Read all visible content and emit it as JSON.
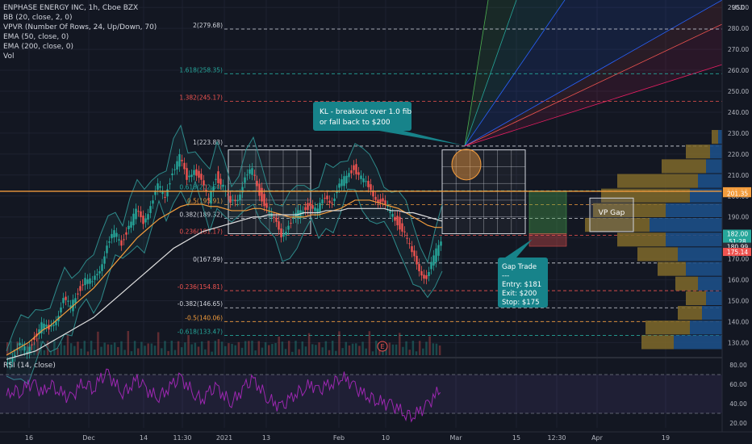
{
  "legend": {
    "title": "ENPHASE ENERGY INC, 1h, Cboe BZX",
    "lines": [
      "BB (20, close, 2, 0)",
      "VPVR (Number Of Rows, 24, Up/Down, 70)",
      "EMA (50, close, 0)",
      "EMA (200, close, 0)",
      "Vol"
    ],
    "rsi": "RSI (14, close)"
  },
  "colors": {
    "background": "#131722",
    "grid": "#1e2230",
    "candle_up": "#26a69a",
    "candle_down": "#ef5350",
    "bb": "#2e8b8b",
    "ema50": "#f39c3c",
    "ema200": "#e0e0e0",
    "rsi": "#9c27b0",
    "fib_teal": "#26a69a",
    "fib_orange": "#f39c3c",
    "fib_red": "#ef5350",
    "fib_white": "#d1d4dc",
    "callout": "#17838a",
    "vp_up": "#806a2a",
    "vp_down": "#1d4f87"
  },
  "chart_data": {
    "type": "candlestick",
    "price_axis": {
      "ticks": [
        130,
        140,
        150,
        160,
        170,
        180,
        190,
        200,
        210,
        220,
        230,
        240,
        250,
        260,
        270,
        280,
        290
      ],
      "currency": "USD",
      "range": [
        124,
        292
      ]
    },
    "time_axis": {
      "labels": [
        "16",
        "Dec",
        "14",
        "11:30",
        "2021",
        "13",
        "Feb",
        "10",
        "Mar",
        "15",
        "12:30",
        "Apr",
        "19"
      ]
    },
    "price_badges": [
      {
        "label": "202.25",
        "value": 202.25,
        "color": "#f39c3c"
      },
      {
        "label": "201.35",
        "value": 201.35,
        "color": "#f39c3c"
      },
      {
        "label": "182.00",
        "value": 182.0,
        "color": "#26a69a"
      },
      {
        "label": "51:28",
        "value": 178.3,
        "color": "#26a69a"
      },
      {
        "label": "180.99",
        "value": 175.8,
        "color": "#2a2e39"
      },
      {
        "label": "175.14",
        "value": 173.3,
        "color": "#ef5350"
      }
    ],
    "fib_levels": [
      {
        "ratio": "-0.618",
        "label": "-0.618(133.47)",
        "price": 133.47,
        "color": "#26a69a"
      },
      {
        "ratio": "-0.5",
        "label": "-0.5(140.06)",
        "price": 140.06,
        "color": "#f39c3c"
      },
      {
        "ratio": "-0.382",
        "label": "-0.382(146.65)",
        "price": 146.65,
        "color": "#d1d4dc"
      },
      {
        "ratio": "-0.236",
        "label": "-0.236(154.81)",
        "price": 154.81,
        "color": "#ef5350"
      },
      {
        "ratio": "0",
        "label": "0(167.99)",
        "price": 167.99,
        "color": "#d1d4dc"
      },
      {
        "ratio": "0.236",
        "label": "0.236(181.17)",
        "price": 181.17,
        "color": "#ef5350"
      },
      {
        "ratio": "0.382",
        "label": "0.382(189.32)",
        "price": 189.32,
        "color": "#d1d4dc"
      },
      {
        "ratio": "0.5",
        "label": "0.5(195.91)",
        "price": 195.91,
        "color": "#f39c3c"
      },
      {
        "ratio": "0.618",
        "label": "0.618(202.50)",
        "price": 202.5,
        "color": "#26a69a"
      },
      {
        "ratio": "1",
        "label": "1(223.83)",
        "price": 223.83,
        "color": "#d1d4dc"
      },
      {
        "ratio": "1.382",
        "label": "1.382(245.17)",
        "price": 245.17,
        "color": "#ef5350"
      },
      {
        "ratio": "1.618",
        "label": "1.618(258.35)",
        "price": 258.35,
        "color": "#26a69a"
      },
      {
        "ratio": "2",
        "label": "2(279.68)",
        "price": 279.68,
        "color": "#d1d4dc"
      }
    ],
    "horizontal_line": {
      "price": 202.25,
      "color": "#f39c3c"
    },
    "close_series": [
      120,
      124,
      128,
      126,
      133,
      138,
      136,
      142,
      150,
      147,
      155,
      160,
      158,
      166,
      176,
      182,
      178,
      186,
      192,
      188,
      196,
      204,
      200,
      212,
      218,
      208,
      214,
      206,
      198,
      210,
      204,
      196,
      200,
      208,
      212,
      202,
      194,
      188,
      182,
      186,
      190,
      194,
      196,
      192,
      200,
      198,
      204,
      210,
      214,
      208,
      204,
      200,
      196,
      192,
      188,
      182,
      172,
      166,
      160,
      170,
      180
    ],
    "ema50_series": [
      124,
      126,
      128,
      130,
      133,
      136,
      138,
      141,
      144,
      147,
      150,
      153,
      156,
      160,
      164,
      168,
      172,
      176,
      180,
      183,
      186,
      189,
      191,
      193,
      195,
      196,
      196,
      196,
      195,
      195,
      194,
      193,
      193,
      193,
      194,
      194,
      193,
      192,
      191,
      190,
      190,
      190,
      191,
      191,
      192,
      193,
      194,
      196,
      198,
      198,
      198,
      197,
      196,
      195,
      194,
      192,
      190,
      188,
      186,
      185,
      185
    ],
    "ema200_series": [
      122,
      123,
      124,
      125,
      126,
      128,
      130,
      132,
      134,
      136,
      138,
      140,
      142,
      145,
      148,
      151,
      154,
      157,
      160,
      163,
      166,
      169,
      172,
      175,
      177,
      179,
      181,
      183,
      184,
      185,
      186,
      187,
      188,
      189,
      190,
      190,
      191,
      191,
      191,
      191,
      191,
      192,
      192,
      192,
      193,
      193,
      193,
      194,
      194,
      194,
      194,
      194,
      194,
      193,
      193,
      192,
      192,
      191,
      190,
      189,
      188
    ],
    "rsi": {
      "ticks": [
        20,
        40,
        60,
        80
      ],
      "overbought": 70,
      "oversold": 30,
      "series": [
        48,
        55,
        52,
        60,
        58,
        50,
        62,
        55,
        48,
        45,
        58,
        62,
        55,
        66,
        70,
        60,
        52,
        58,
        64,
        56,
        50,
        48,
        54,
        60,
        66,
        58,
        50,
        44,
        52,
        56,
        48,
        42,
        50,
        58,
        64,
        56,
        46,
        40,
        36,
        44,
        52,
        56,
        60,
        52,
        58,
        62,
        68,
        64,
        56,
        50,
        48,
        44,
        40,
        38,
        34,
        30,
        28,
        32,
        38,
        48,
        58
      ]
    },
    "volume_profile": [
      {
        "price": 130,
        "up": 40,
        "down": 60
      },
      {
        "price": 137,
        "up": 55,
        "down": 40
      },
      {
        "price": 144,
        "up": 30,
        "down": 25
      },
      {
        "price": 151,
        "up": 25,
        "down": 20
      },
      {
        "price": 158,
        "up": 28,
        "down": 30
      },
      {
        "price": 165,
        "up": 35,
        "down": 45
      },
      {
        "price": 172,
        "up": 50,
        "down": 55
      },
      {
        "price": 179,
        "up": 60,
        "down": 70
      },
      {
        "price": 186,
        "up": 80,
        "down": 90
      },
      {
        "price": 193,
        "up": 90,
        "down": 70
      },
      {
        "price": 200,
        "up": 110,
        "down": 40
      },
      {
        "price": 207,
        "up": 100,
        "down": 30
      },
      {
        "price": 214,
        "up": 55,
        "down": 20
      },
      {
        "price": 221,
        "up": 30,
        "down": 15
      },
      {
        "price": 228,
        "up": 8,
        "down": 5
      }
    ]
  },
  "annotations": {
    "kl_callout": [
      "KL - breakout over 1.0 fib",
      "or fall back to $200"
    ],
    "gap_trade": [
      "Gap Trade",
      "---",
      "Entry: $181",
      "Exit: $200",
      "Stop: $175"
    ],
    "vp_gap": "VP Gap",
    "event_marker": "E"
  }
}
